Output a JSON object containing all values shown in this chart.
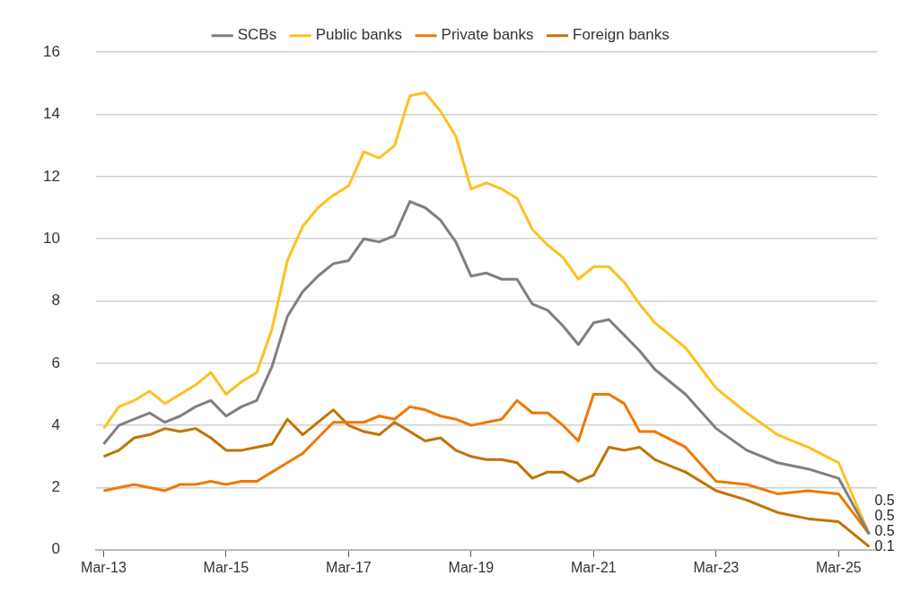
{
  "chart_data": {
    "type": "line",
    "categories": [
      "Mar-13",
      null,
      null,
      null,
      null,
      null,
      null,
      null,
      "Mar-15",
      null,
      null,
      null,
      null,
      null,
      null,
      null,
      "Mar-17",
      null,
      null,
      null,
      null,
      null,
      null,
      null,
      "Mar-19",
      null,
      null,
      null,
      null,
      null,
      null,
      null,
      "Mar-21",
      null,
      null,
      null,
      null,
      null,
      null,
      null,
      "Mar-23",
      null,
      null,
      null,
      null,
      null,
      null,
      null,
      "Mar-25",
      null,
      null
    ],
    "series": [
      {
        "name": "SCBs",
        "color": "#808080",
        "values": [
          3.4,
          4.0,
          4.2,
          4.4,
          4.1,
          4.3,
          4.6,
          4.8,
          4.3,
          4.6,
          4.8,
          5.9,
          7.5,
          8.3,
          8.8,
          9.2,
          9.3,
          10.0,
          9.9,
          10.1,
          11.2,
          11.0,
          10.6,
          9.9,
          8.8,
          8.9,
          8.7,
          8.7,
          7.9,
          7.7,
          7.2,
          6.6,
          7.3,
          7.4,
          6.9,
          6.4,
          5.8,
          null,
          5.0,
          null,
          3.9,
          null,
          3.2,
          null,
          2.8,
          null,
          2.6,
          null,
          2.3,
          null,
          0.5
        ],
        "value_labels": [
          null,
          null,
          null,
          null,
          null,
          null,
          null,
          null,
          null,
          null,
          null,
          null,
          null,
          null,
          null,
          null,
          null,
          null,
          null,
          null,
          null,
          null,
          null,
          null,
          null,
          null,
          null,
          null,
          null,
          null,
          null,
          null,
          null,
          null,
          null,
          null,
          null,
          null,
          null,
          null,
          null,
          null,
          null,
          null,
          null,
          null,
          null,
          null,
          null,
          null,
          "0.5"
        ]
      },
      {
        "name": "Public banks",
        "color": "#ffc020",
        "values": [
          3.9,
          4.6,
          4.8,
          5.1,
          4.7,
          5.0,
          5.3,
          5.7,
          5.0,
          5.4,
          5.7,
          7.1,
          9.3,
          10.4,
          11.0,
          11.4,
          11.7,
          12.8,
          12.6,
          13.0,
          14.6,
          14.7,
          14.1,
          13.3,
          11.6,
          11.8,
          11.6,
          11.3,
          10.3,
          9.8,
          9.4,
          8.7,
          9.1,
          9.1,
          8.6,
          7.9,
          7.3,
          null,
          6.5,
          null,
          5.2,
          null,
          4.4,
          null,
          3.7,
          null,
          3.3,
          null,
          2.8,
          null,
          0.5
        ],
        "value_labels": [
          null,
          null,
          null,
          null,
          null,
          null,
          null,
          null,
          null,
          null,
          null,
          null,
          null,
          null,
          null,
          null,
          null,
          null,
          null,
          null,
          null,
          null,
          null,
          null,
          null,
          null,
          null,
          null,
          null,
          null,
          null,
          null,
          null,
          null,
          null,
          null,
          null,
          null,
          null,
          null,
          null,
          null,
          null,
          null,
          null,
          null,
          null,
          null,
          null,
          null,
          "0.5"
        ]
      },
      {
        "name": "Private banks",
        "color": "#f07800",
        "values": [
          1.9,
          2.0,
          2.1,
          2.0,
          1.9,
          2.1,
          2.1,
          2.2,
          2.1,
          2.2,
          2.2,
          2.5,
          2.8,
          3.1,
          3.6,
          4.1,
          4.1,
          4.1,
          4.3,
          4.2,
          4.6,
          4.5,
          4.3,
          4.2,
          4.0,
          4.1,
          4.2,
          4.8,
          4.4,
          4.4,
          4.0,
          3.5,
          5.0,
          5.0,
          4.7,
          3.8,
          3.8,
          null,
          3.3,
          null,
          2.2,
          null,
          2.1,
          null,
          1.8,
          null,
          1.9,
          null,
          1.8,
          null,
          0.5
        ],
        "value_labels": [
          null,
          null,
          null,
          null,
          null,
          null,
          null,
          null,
          null,
          null,
          null,
          null,
          null,
          null,
          null,
          null,
          null,
          null,
          null,
          null,
          null,
          null,
          null,
          null,
          null,
          null,
          null,
          null,
          null,
          null,
          null,
          null,
          null,
          null,
          null,
          null,
          null,
          null,
          null,
          null,
          null,
          null,
          null,
          null,
          null,
          null,
          null,
          null,
          null,
          null,
          "0.5"
        ]
      },
      {
        "name": "Foreign banks",
        "color": "#bf7400",
        "values": [
          3.0,
          3.2,
          3.6,
          3.7,
          3.9,
          3.8,
          3.9,
          3.6,
          3.2,
          3.2,
          3.3,
          3.4,
          4.2,
          3.7,
          4.1,
          4.5,
          4.0,
          3.8,
          3.7,
          4.1,
          3.8,
          3.5,
          3.6,
          3.2,
          3.0,
          2.9,
          2.9,
          2.8,
          2.3,
          2.5,
          2.5,
          2.2,
          2.4,
          3.3,
          3.2,
          3.3,
          2.9,
          null,
          2.5,
          null,
          1.9,
          null,
          1.6,
          null,
          1.2,
          null,
          1.0,
          null,
          0.9,
          null,
          0.1
        ],
        "value_labels": [
          null,
          null,
          null,
          null,
          null,
          null,
          null,
          null,
          null,
          null,
          null,
          null,
          null,
          null,
          null,
          null,
          null,
          null,
          null,
          null,
          null,
          null,
          null,
          null,
          null,
          null,
          null,
          null,
          null,
          null,
          null,
          null,
          null,
          null,
          null,
          null,
          null,
          null,
          null,
          null,
          null,
          null,
          null,
          null,
          null,
          null,
          null,
          null,
          null,
          null,
          "0.1"
        ]
      }
    ],
    "ylim": [
      0,
      16
    ],
    "yticks": [
      0,
      2,
      4,
      6,
      8,
      10,
      12,
      14,
      16
    ],
    "grid": "y",
    "legend": "top",
    "marker": "none",
    "line_style": "solid"
  }
}
